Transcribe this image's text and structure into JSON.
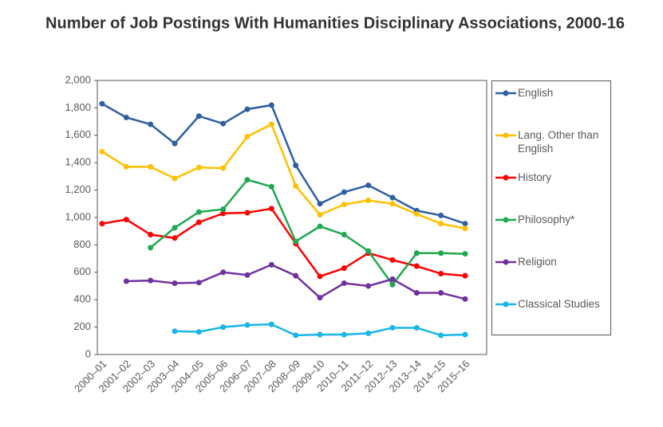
{
  "chart_data": {
    "type": "line",
    "title": "Number of Job Postings With Humanities Disciplinary Associations, 2000-16",
    "categories": [
      "2000–01",
      "2001–02",
      "2002–03",
      "2003–04",
      "2004–05",
      "2005–06",
      "2006–07",
      "2007–08",
      "2008–09",
      "2009–10",
      "2010–11",
      "2011–12",
      "2012–13",
      "2013–14",
      "2014–15",
      "2015–16"
    ],
    "ylim": [
      0,
      2000
    ],
    "yticks": [
      0,
      200,
      400,
      600,
      800,
      {
        "value": 1000,
        "label": "1,000"
      },
      {
        "value": 1200,
        "label": "1,200"
      },
      {
        "value": 1400,
        "label": "1,400"
      },
      {
        "value": 1600,
        "label": "1,600"
      },
      {
        "value": 1800,
        "label": "1,800"
      },
      {
        "value": 2000,
        "label": "2,000"
      }
    ],
    "grid": false,
    "legend": "right",
    "series": [
      {
        "name": "English",
        "color": "#2e5fa3",
        "values": [
          1830,
          1730,
          1680,
          1540,
          1740,
          1685,
          1790,
          1820,
          1380,
          1100,
          1185,
          1235,
          1145,
          1050,
          1015,
          955
        ]
      },
      {
        "name": "Lang. Other than English",
        "color": "#ffc000",
        "values": [
          1480,
          1370,
          1370,
          1285,
          1365,
          1360,
          1590,
          1680,
          1230,
          1020,
          1095,
          1125,
          1100,
          1025,
          955,
          920
        ]
      },
      {
        "name": "History",
        "color": "#ff0000",
        "values": [
          955,
          985,
          875,
          850,
          965,
          1030,
          1035,
          1065,
          810,
          570,
          630,
          740,
          690,
          645,
          590,
          575
        ]
      },
      {
        "name": "Philosophy*",
        "color": "#1fa84f",
        "values": [
          null,
          null,
          780,
          925,
          1040,
          1060,
          1275,
          1225,
          825,
          935,
          875,
          755,
          510,
          740,
          740,
          735
        ]
      },
      {
        "name": "Religion",
        "color": "#7030a0",
        "values": [
          null,
          535,
          540,
          520,
          525,
          600,
          580,
          655,
          575,
          415,
          520,
          500,
          550,
          450,
          450,
          405
        ]
      },
      {
        "name": "Classical Studies",
        "color": "#17b5e8",
        "values": [
          null,
          null,
          null,
          170,
          165,
          200,
          215,
          220,
          140,
          145,
          145,
          155,
          195,
          195,
          140,
          145
        ]
      }
    ]
  }
}
